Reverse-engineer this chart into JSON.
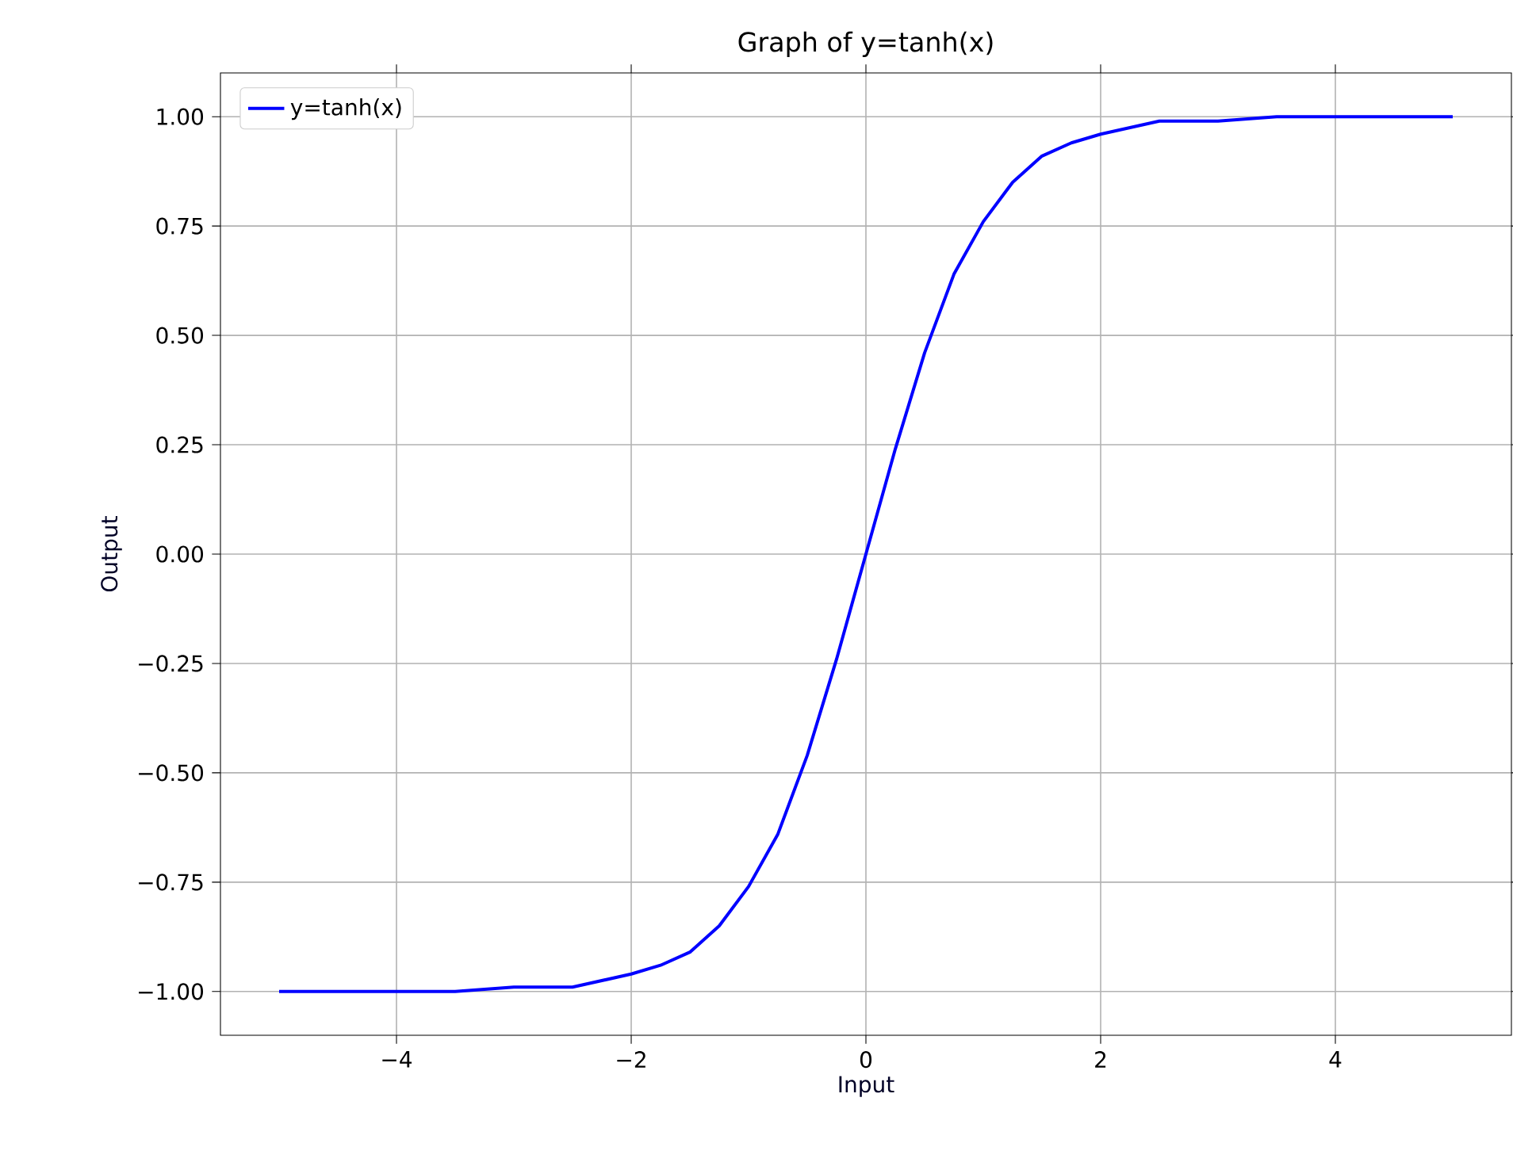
{
  "chart_data": {
    "type": "line",
    "title": "Graph of y=tanh(x)",
    "xlabel": "Input",
    "ylabel": "Output",
    "series": [
      {
        "name": "y=tanh(x)",
        "color": "#0000ff",
        "x": [
          -5,
          -4.5,
          -4,
          -3.5,
          -3,
          -2.5,
          -2,
          -1.75,
          -1.5,
          -1.25,
          -1,
          -0.75,
          -0.5,
          -0.25,
          0,
          0.25,
          0.5,
          0.75,
          1,
          1.25,
          1.5,
          1.75,
          2,
          2.5,
          3,
          3.5,
          4,
          4.5,
          5
        ],
        "values": [
          -1.0,
          -1.0,
          -1.0,
          -1.0,
          -0.99,
          -0.99,
          -0.96,
          -0.94,
          -0.91,
          -0.85,
          -0.76,
          -0.64,
          -0.46,
          -0.24,
          0.0,
          0.24,
          0.46,
          0.64,
          0.76,
          0.85,
          0.91,
          0.94,
          0.96,
          0.99,
          0.99,
          1.0,
          1.0,
          1.0,
          1.0
        ]
      }
    ],
    "xlim": [
      -5.5,
      5.5
    ],
    "ylim": [
      -1.1,
      1.1
    ],
    "xticks": [
      {
        "value": -4,
        "label": "−4"
      },
      {
        "value": -2,
        "label": "−2"
      },
      {
        "value": 0,
        "label": "0"
      },
      {
        "value": 2,
        "label": "2"
      },
      {
        "value": 4,
        "label": "4"
      }
    ],
    "yticks": [
      {
        "value": -1,
        "label": "−1.00"
      },
      {
        "value": -0.75,
        "label": "−0.75"
      },
      {
        "value": -0.5,
        "label": "−0.50"
      },
      {
        "value": -0.25,
        "label": "−0.25"
      },
      {
        "value": 0,
        "label": "0.00"
      },
      {
        "value": 0.25,
        "label": "0.25"
      },
      {
        "value": 0.5,
        "label": "0.50"
      },
      {
        "value": 0.75,
        "label": "0.75"
      },
      {
        "value": 1,
        "label": "1.00"
      }
    ],
    "grid": true,
    "legend": "top left",
    "marker": "none",
    "line_style": "solid"
  }
}
